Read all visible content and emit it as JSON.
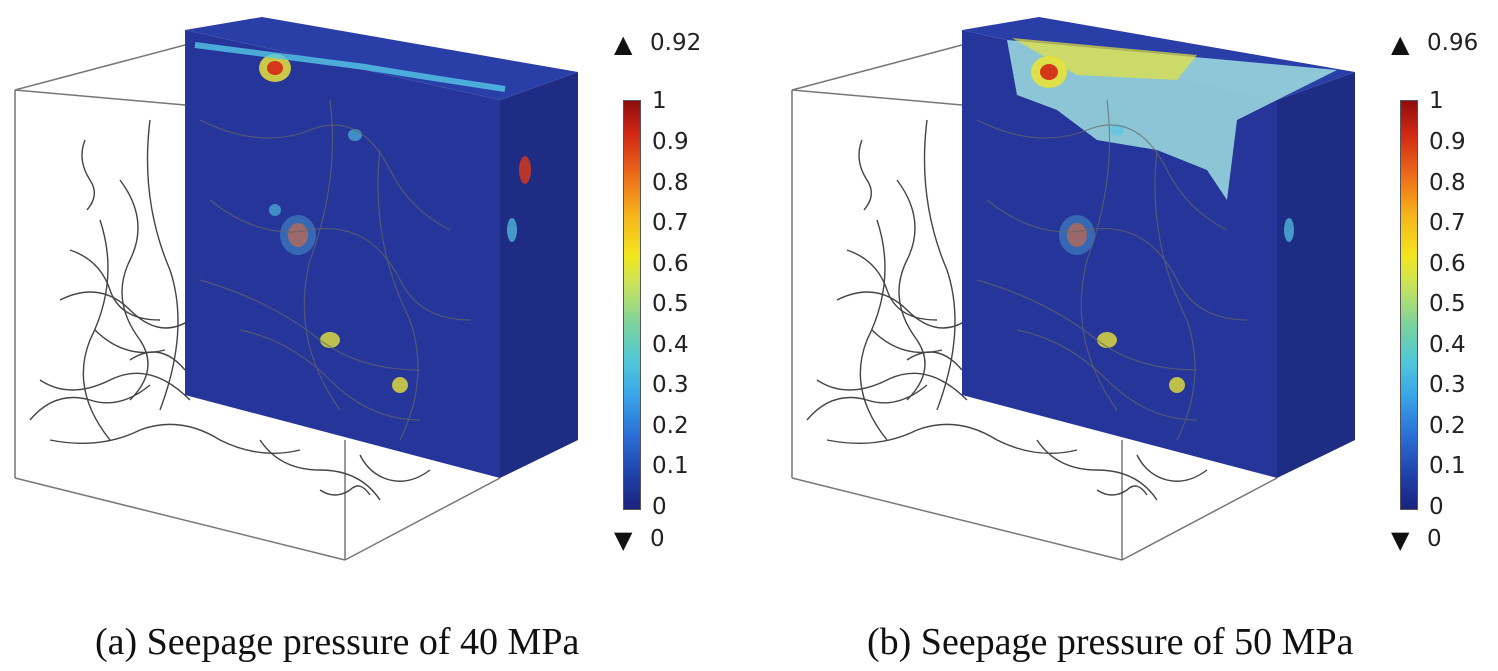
{
  "panels": [
    {
      "caption": "(a) Seepage pressure of 40 MPa",
      "max_label": "0.92",
      "min_label": "0",
      "colorbar_ticks": [
        "1",
        "0.9",
        "0.8",
        "0.7",
        "0.6",
        "0.5",
        "0.4",
        "0.3",
        "0.2",
        "0.1",
        "0"
      ]
    },
    {
      "caption": "(b) Seepage pressure of 50 MPa",
      "max_label": "0.96",
      "min_label": "0",
      "colorbar_ticks": [
        "1",
        "0.9",
        "0.8",
        "0.7",
        "0.6",
        "0.5",
        "0.4",
        "0.3",
        "0.2",
        "0.1",
        "0"
      ]
    }
  ],
  "colors": {
    "block_front": "#25359a",
    "block_side": "#1e2c84",
    "block_top": "#2a3ea8",
    "highlight_cyan": "#55c8e6",
    "highlight_yellow": "#e6e23a",
    "highlight_red": "#d4371c",
    "fracture_line": "#444444"
  }
}
